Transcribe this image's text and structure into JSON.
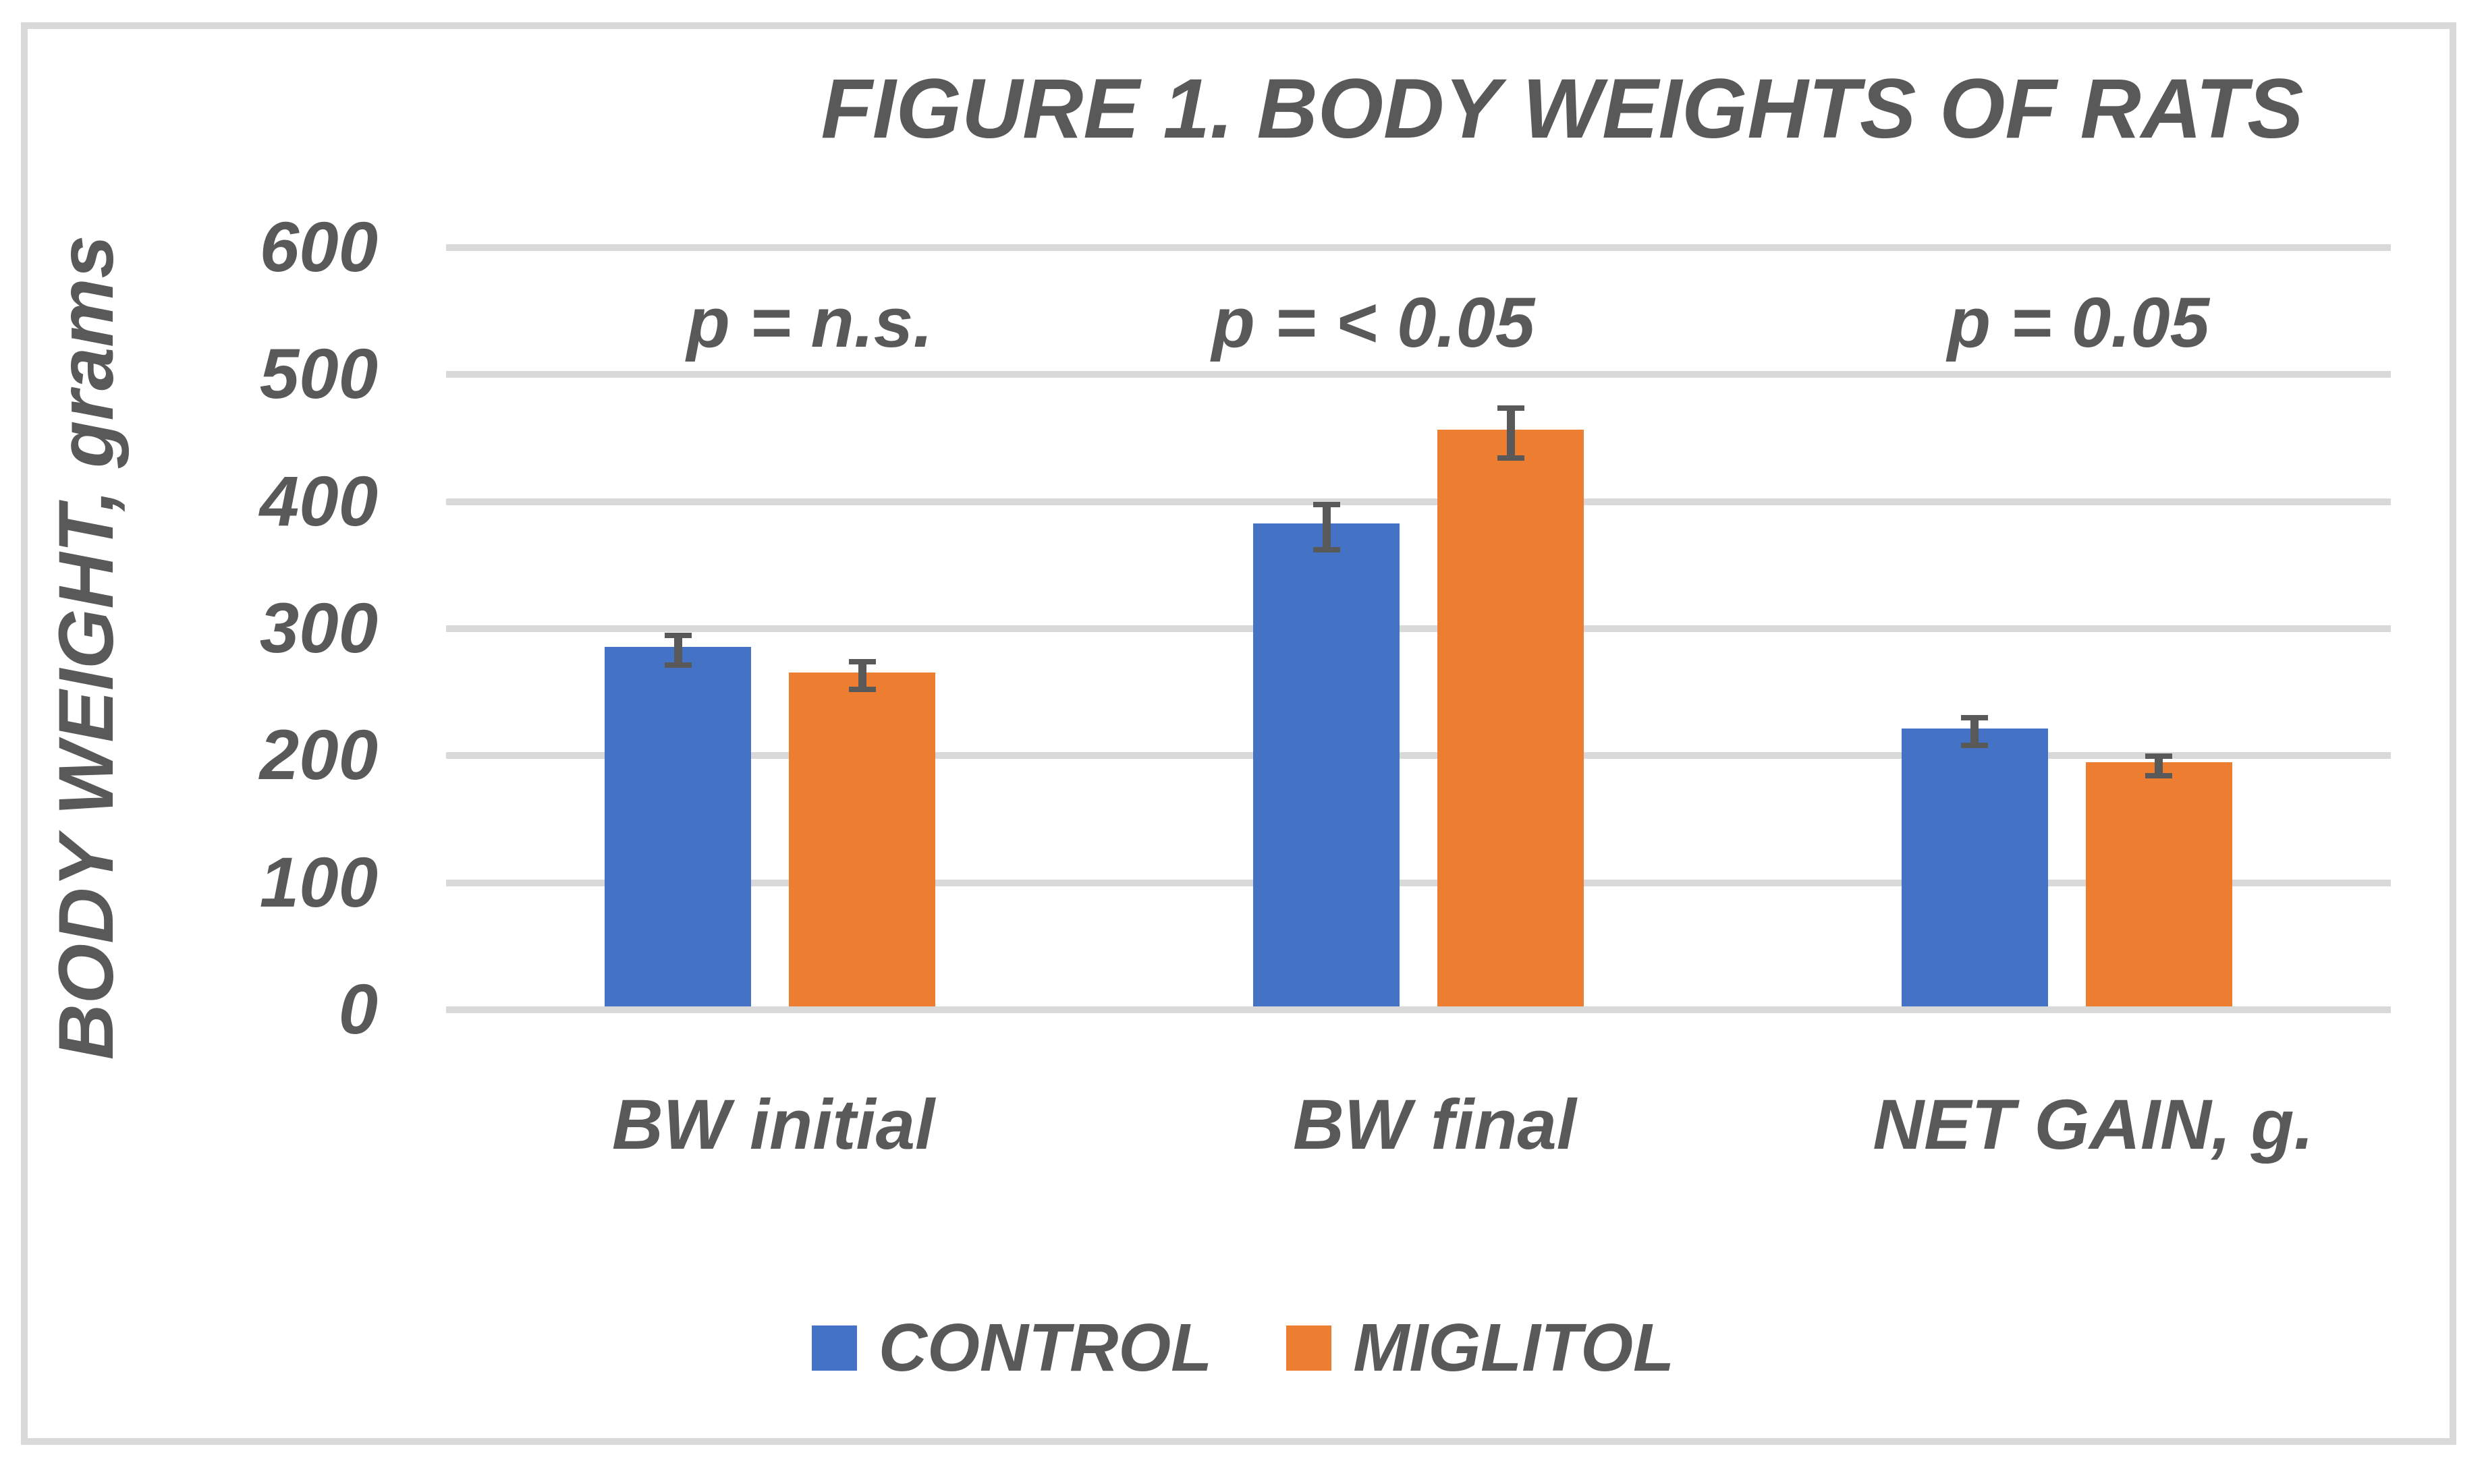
{
  "figure": {
    "title": "FIGURE 1. BODY WEIGHTS OF RATS",
    "y_axis_title": "BODY WEIGHT, grams"
  },
  "chart_data": {
    "type": "bar",
    "title": "FIGURE 1. BODY WEIGHTS OF RATS",
    "xlabel": "",
    "ylabel": "BODY WEIGHT, grams",
    "categories": [
      "BW initial",
      "BW final",
      "NET GAIN, g."
    ],
    "series": [
      {
        "name": "CONTROL",
        "color": "#4472C4",
        "values": [
          283,
          380,
          219
        ],
        "errors": [
          14,
          20,
          13
        ]
      },
      {
        "name": "MIGLITOL",
        "color": "#ED7D31",
        "values": [
          263,
          454,
          192
        ],
        "errors": [
          13,
          22,
          10
        ]
      }
    ],
    "annotations": [
      "p = n.s.",
      "p = < 0.05",
      "p = 0.05"
    ],
    "ylim": [
      0,
      600
    ],
    "y_ticks": [
      0,
      100,
      200,
      300,
      400,
      500,
      600
    ],
    "grid": "horizontal",
    "legend_position": "bottom"
  },
  "colors": {
    "text": "#595959",
    "gridline": "#D9D9D9",
    "frame_border": "#D9D9D9",
    "error_bar": "#595959",
    "control_blue": "#4472C4",
    "miglitol_orange": "#ED7D31"
  }
}
